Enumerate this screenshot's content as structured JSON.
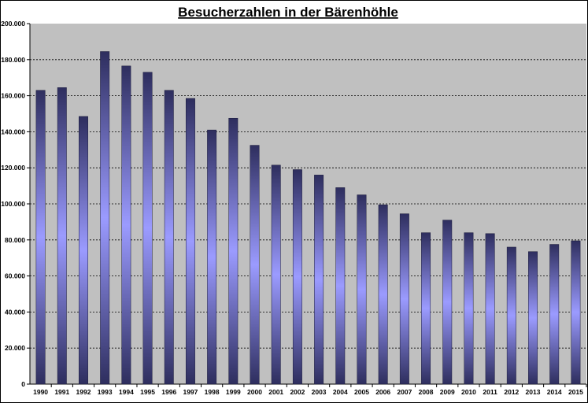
{
  "colors": {
    "plot_background": "#c0c0c0",
    "bar_dark": "#2e2e5e",
    "bar_light": "#9b9bff",
    "gridline": "#000000"
  },
  "chart_data": {
    "type": "bar",
    "title": "Besucherzahlen in der Bärenhöhle",
    "xlabel": "",
    "ylabel": "",
    "categories": [
      "1990",
      "1991",
      "1992",
      "1993",
      "1994",
      "1995",
      "1996",
      "1997",
      "1998",
      "1999",
      "2000",
      "2001",
      "2002",
      "2003",
      "2004",
      "2005",
      "2006",
      "2007",
      "2008",
      "2009",
      "2010",
      "2011",
      "2012",
      "2013",
      "2014",
      "2015"
    ],
    "values": [
      163000,
      164500,
      148500,
      184500,
      176500,
      173000,
      163000,
      158500,
      141000,
      147500,
      132500,
      121500,
      119000,
      116000,
      109000,
      105000,
      99500,
      94500,
      84000,
      91000,
      84000,
      83500,
      76000,
      73500,
      77500,
      79500
    ],
    "ylim": [
      0,
      200000
    ],
    "yticks": [
      0,
      20000,
      40000,
      60000,
      80000,
      100000,
      120000,
      140000,
      160000,
      180000,
      200000
    ],
    "ytick_labels": [
      "0",
      "20.000",
      "40.000",
      "60.000",
      "80.000",
      "100.000",
      "120.000",
      "140.000",
      "160.000",
      "180.000",
      "200.000"
    ],
    "grid": true,
    "legend": "none"
  }
}
